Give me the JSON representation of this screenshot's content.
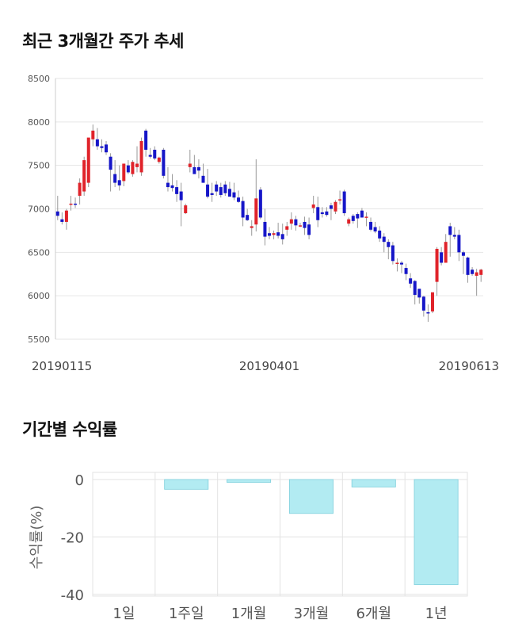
{
  "sections": {
    "price_title": "최근 3개월간 주가 추세",
    "return_title": "기간별 수익률"
  },
  "colors": {
    "up": "#e0232a",
    "down": "#1616c8",
    "bar": "#b2ebf2",
    "bar_stroke": "#7fcfdc"
  },
  "chart_data": [
    {
      "type": "candlestick",
      "title": "최근 3개월간 주가 추세",
      "ylim": [
        5500,
        8500
      ],
      "y_ticks": [
        "8500",
        "8000",
        "7500",
        "7000",
        "6500",
        "6000",
        "5500"
      ],
      "x_tick_labels": [
        "20190115",
        "20190401",
        "20190613"
      ],
      "grid": true,
      "candles": [
        [
          6970,
          7150,
          6870,
          6920
        ],
        [
          6880,
          6960,
          6820,
          6850
        ],
        [
          6850,
          7000,
          6760,
          6980
        ],
        [
          7050,
          7150,
          6980,
          7060
        ],
        [
          7060,
          7130,
          7010,
          7050
        ],
        [
          7150,
          7350,
          7050,
          7300
        ],
        [
          7200,
          7600,
          7150,
          7560
        ],
        [
          7300,
          7800,
          7250,
          7820
        ],
        [
          7800,
          7970,
          7720,
          7900
        ],
        [
          7800,
          7930,
          7680,
          7720
        ],
        [
          7720,
          7800,
          7650,
          7700
        ],
        [
          7740,
          7780,
          7620,
          7650
        ],
        [
          7600,
          7640,
          7200,
          7450
        ],
        [
          7400,
          7560,
          7250,
          7300
        ],
        [
          7330,
          7500,
          7210,
          7270
        ],
        [
          7320,
          7500,
          7260,
          7520
        ],
        [
          7500,
          7560,
          7400,
          7420
        ],
        [
          7400,
          7560,
          7370,
          7540
        ],
        [
          7480,
          7720,
          7420,
          7520
        ],
        [
          7420,
          7820,
          7380,
          7780
        ],
        [
          7900,
          7920,
          7600,
          7680
        ],
        [
          7620,
          7700,
          7580,
          7600
        ],
        [
          7680,
          7720,
          7560,
          7580
        ],
        [
          7540,
          7600,
          7520,
          7590
        ],
        [
          7680,
          7700,
          7350,
          7380
        ],
        [
          7300,
          7480,
          7200,
          7250
        ],
        [
          7270,
          7400,
          7200,
          7240
        ],
        [
          7250,
          7330,
          7080,
          7170
        ],
        [
          7200,
          7300,
          6800,
          7100
        ],
        [
          6950,
          7060,
          6940,
          7040
        ],
        [
          7480,
          7680,
          7420,
          7520
        ],
        [
          7480,
          7620,
          7410,
          7400
        ],
        [
          7480,
          7570,
          7350,
          7440
        ],
        [
          7380,
          7520,
          7300,
          7300
        ],
        [
          7280,
          7460,
          7120,
          7140
        ],
        [
          7180,
          7300,
          7080,
          7160
        ],
        [
          7280,
          7320,
          7150,
          7200
        ],
        [
          7250,
          7300,
          7130,
          7160
        ],
        [
          7280,
          7320,
          7150,
          7180
        ],
        [
          7230,
          7310,
          7150,
          7140
        ],
        [
          7190,
          7300,
          7100,
          7130
        ],
        [
          7130,
          7210,
          7070,
          7080
        ],
        [
          7090,
          7140,
          6800,
          6900
        ],
        [
          6930,
          7000,
          6860,
          6870
        ],
        [
          6780,
          6870,
          6690,
          6800
        ],
        [
          6820,
          7570,
          6740,
          7120
        ],
        [
          7220,
          7250,
          6880,
          6900
        ],
        [
          6850,
          7000,
          6580,
          6680
        ],
        [
          6720,
          6790,
          6650,
          6690
        ],
        [
          6700,
          6750,
          6650,
          6720
        ],
        [
          6730,
          6840,
          6660,
          6690
        ],
        [
          6710,
          6830,
          6590,
          6650
        ],
        [
          6760,
          6850,
          6690,
          6800
        ],
        [
          6830,
          6960,
          6760,
          6880
        ],
        [
          6880,
          6920,
          6750,
          6810
        ],
        [
          6810,
          6840,
          6790,
          6810
        ],
        [
          6850,
          6910,
          6700,
          6780
        ],
        [
          6820,
          6900,
          6650,
          6700
        ],
        [
          7010,
          7150,
          6950,
          7050
        ],
        [
          7020,
          7140,
          6790,
          6870
        ],
        [
          6960,
          7020,
          6900,
          6940
        ],
        [
          6970,
          7020,
          6910,
          6930
        ],
        [
          7040,
          7070,
          6870,
          7000
        ],
        [
          6970,
          7100,
          6940,
          7080
        ],
        [
          7100,
          7210,
          7050,
          7110
        ],
        [
          7200,
          7220,
          6920,
          6950
        ],
        [
          6830,
          6900,
          6800,
          6880
        ],
        [
          6920,
          6940,
          6830,
          6860
        ],
        [
          6940,
          6960,
          6780,
          6890
        ],
        [
          6980,
          7010,
          6910,
          6900
        ],
        [
          6900,
          6960,
          6800,
          6910
        ],
        [
          6850,
          6900,
          6740,
          6760
        ],
        [
          6790,
          6850,
          6720,
          6740
        ],
        [
          6750,
          6800,
          6620,
          6660
        ],
        [
          6680,
          6720,
          6500,
          6620
        ],
        [
          6620,
          6650,
          6420,
          6560
        ],
        [
          6580,
          6620,
          6360,
          6400
        ],
        [
          6380,
          6430,
          6280,
          6380
        ],
        [
          6380,
          6400,
          6260,
          6360
        ],
        [
          6320,
          6370,
          6180,
          6250
        ],
        [
          6200,
          6260,
          6090,
          6140
        ],
        [
          6170,
          6180,
          5900,
          6010
        ],
        [
          6080,
          6080,
          5910,
          5980
        ],
        [
          5990,
          6000,
          5760,
          5830
        ],
        [
          5810,
          5900,
          5700,
          5800
        ],
        [
          5820,
          6020,
          5800,
          6040
        ],
        [
          6160,
          6560,
          6000,
          6540
        ],
        [
          6500,
          6560,
          6350,
          6380
        ],
        [
          6380,
          6710,
          6400,
          6620
        ],
        [
          6800,
          6840,
          6450,
          6700
        ],
        [
          6700,
          6790,
          6650,
          6680
        ],
        [
          6700,
          6760,
          6400,
          6500
        ],
        [
          6500,
          6520,
          6250,
          6460
        ],
        [
          6440,
          6450,
          6150,
          6240
        ],
        [
          6300,
          6330,
          6230,
          6250
        ],
        [
          6230,
          6310,
          6000,
          6270
        ],
        [
          6240,
          6310,
          6160,
          6300
        ]
      ]
    },
    {
      "type": "bar",
      "title": "기간별 수익률",
      "categories": [
        "1일",
        "1주일",
        "1개월",
        "3개월",
        "6개월",
        "1년"
      ],
      "values": [
        0,
        -3.4,
        -1.0,
        -11.8,
        -2.6,
        -36.6
      ],
      "ylabel": "수익률(%)",
      "ylim": [
        -40,
        5
      ],
      "y_ticks": [
        "0",
        "-20",
        "-40"
      ],
      "grid": true
    }
  ]
}
